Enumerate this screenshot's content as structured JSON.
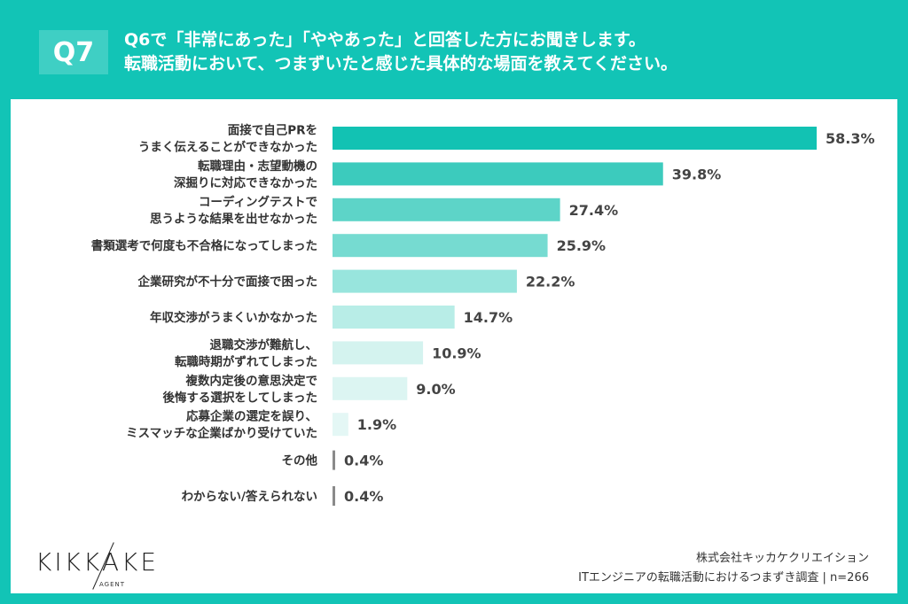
{
  "header": {
    "badge": "Q7",
    "title_line1": "Q6で「非常にあった」「ややあった」と回答した方にお聞きします。",
    "title_line2": "転職活動において、つまずいたと感じた具体的な場面を教えてください。"
  },
  "chart_data": {
    "type": "bar",
    "orientation": "horizontal",
    "categories": [
      [
        "面接で自己PRを",
        "うまく伝えることができなかった"
      ],
      [
        "転職理由・志望動機の",
        "深掘りに対応できなかった"
      ],
      [
        "コーディングテストで",
        "思うような結果を出せなかった"
      ],
      [
        "書類選考で何度も不合格になってしまった"
      ],
      [
        "企業研究が不十分で面接で困った"
      ],
      [
        "年収交渉がうまくいかなかった"
      ],
      [
        "退職交渉が難航し、",
        "転職時期がずれてしまった"
      ],
      [
        "複数内定後の意思決定で",
        "後悔する選択をしてしまった"
      ],
      [
        "応募企業の選定を誤り、",
        "ミスマッチな企業ばかり受けていた"
      ],
      [
        "その他"
      ],
      [
        "わからない/答えられない"
      ]
    ],
    "values": [
      58.3,
      39.8,
      27.4,
      25.9,
      22.2,
      14.7,
      10.9,
      9.0,
      1.9,
      0.4,
      0.4
    ],
    "value_labels": [
      "58.3%",
      "39.8%",
      "27.4%",
      "25.9%",
      "22.2%",
      "14.7%",
      "10.9%",
      "9.0%",
      "1.9%",
      "0.4%",
      "0.4%"
    ],
    "colors": [
      "#12c2b3",
      "#3ccbbd",
      "#5dd4c8",
      "#76dbd1",
      "#98e5dd",
      "#b8ede7",
      "#d4f3ef",
      "#dcf5f2",
      "#e4f7f5",
      "#8a8a8a",
      "#8a8a8a"
    ],
    "unit": "%",
    "grid": false
  },
  "footer": {
    "logo": "KIKKAKE",
    "logo_sub": "AGENT",
    "company": "株式会社キッカケクリエイション",
    "survey": "ITエンジニアの転職活動におけるつまずき調査 | n=266"
  }
}
